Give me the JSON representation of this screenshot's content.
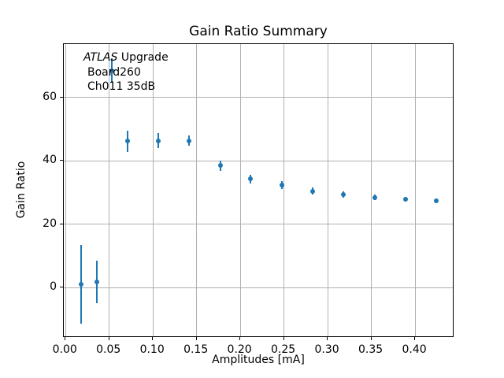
{
  "chart_data": {
    "type": "scatter",
    "title": "Gain Ratio Summary",
    "xlabel": "Amplitudes [mA]",
    "ylabel": "Gain Ratio",
    "xlim": [
      -0.002,
      0.445
    ],
    "ylim": [
      -15.9,
      76.9
    ],
    "xticks": [
      0.0,
      0.05,
      0.1,
      0.15,
      0.2,
      0.25,
      0.3,
      0.35,
      0.4
    ],
    "xtick_labels": [
      "0.00",
      "0.05",
      "0.10",
      "0.15",
      "0.20",
      "0.25",
      "0.30",
      "0.35",
      "0.40"
    ],
    "yticks": [
      0,
      20,
      40,
      60
    ],
    "ytick_labels": [
      "0",
      "20",
      "40",
      "60"
    ],
    "grid": true,
    "legend": "none",
    "marker": "o",
    "error_caps": false,
    "colors": {
      "series": "#1f77b4",
      "grid": "#b0b0b0",
      "spine": "#000000",
      "text": "#000000",
      "background": "#ffffff"
    },
    "series": [
      {
        "name": "Gain Ratio",
        "x": [
          0.018,
          0.036,
          0.053,
          0.071,
          0.106,
          0.141,
          0.177,
          0.212,
          0.248,
          0.283,
          0.318,
          0.354,
          0.389,
          0.424
        ],
        "y": [
          1.1,
          1.8,
          68.5,
          46.2,
          46.4,
          46.4,
          38.5,
          34.3,
          32.3,
          30.5,
          29.4,
          28.5,
          27.9,
          27.4
        ],
        "yerr": [
          12.4,
          6.7,
          3.8,
          3.3,
          2.3,
          1.7,
          1.6,
          1.4,
          1.2,
          1.0,
          0.9,
          0.8,
          0.7,
          0.6
        ]
      }
    ],
    "annotation": {
      "line1_italic": "ATLAS",
      "line1_rest": " Upgrade",
      "line2": "Board260",
      "line3": "Ch011 35dB"
    }
  }
}
